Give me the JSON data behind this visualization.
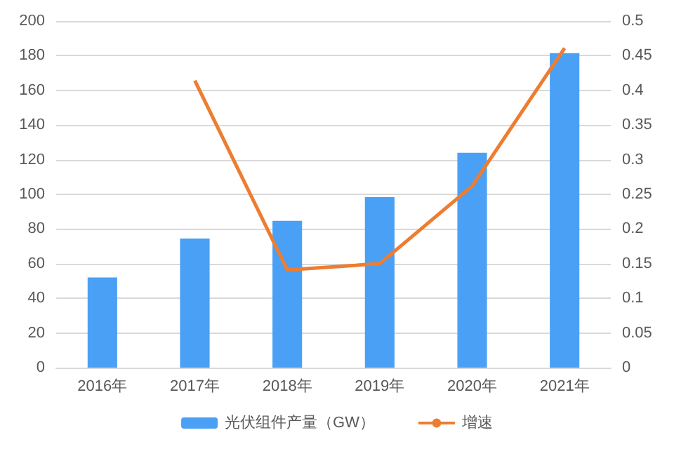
{
  "chart_data": {
    "type": "bar",
    "categories": [
      "2016年",
      "2017年",
      "2018年",
      "2019年",
      "2020年",
      "2021年"
    ],
    "series": [
      {
        "name": "光伏组件产量（GW）",
        "color": "#4aa0f5",
        "values": [
          52,
          74.5,
          84.7,
          98.4,
          124,
          181.5
        ]
      },
      {
        "name": "增速",
        "type": "line",
        "axis": "y2",
        "color": "#ed7d31",
        "values": [
          null,
          0.414,
          0.141,
          0.15,
          0.262,
          0.461
        ]
      }
    ],
    "ylim": [
      0,
      200
    ],
    "yticks": [
      0,
      20,
      40,
      60,
      80,
      100,
      120,
      140,
      160,
      180,
      200
    ],
    "y2lim": [
      0,
      0.5
    ],
    "y2ticks": [
      0,
      0.05,
      0.1,
      0.15,
      0.2,
      0.25,
      0.3,
      0.35,
      0.4,
      0.45,
      0.5
    ],
    "grid": "y",
    "legend": "bottom",
    "marker": "none"
  }
}
